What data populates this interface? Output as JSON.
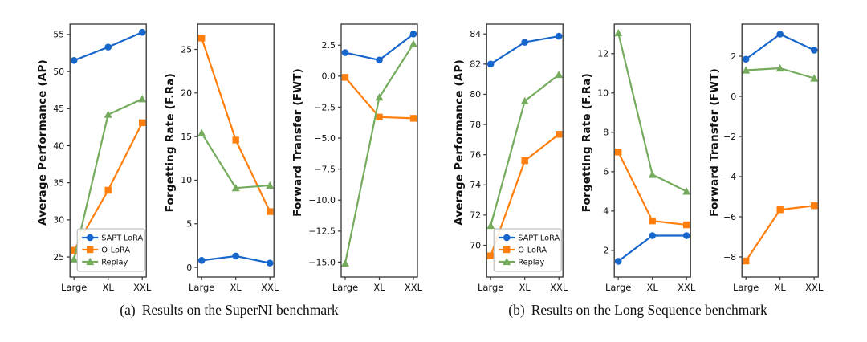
{
  "figures": [
    {
      "caption_tag": "(a)",
      "caption_text": "Results on the SuperNI benchmark"
    },
    {
      "caption_tag": "(b)",
      "caption_text": "Results on the Long Sequence benchmark"
    }
  ],
  "palette": {
    "sapt_blue": "#1766cb",
    "olora_orange": "#ff7f0e",
    "replay_green": "#74ab5d",
    "axis": "#333333",
    "legend_border": "#b3b3b3",
    "background": "#ffffff"
  },
  "x_axis": {
    "categories": [
      "Large",
      "XL",
      "XXL"
    ]
  },
  "legend_entries": [
    "SAPT-LoRA",
    "O-LoRA",
    "Replay"
  ],
  "chart_data": [
    {
      "type": "line",
      "figure": "SuperNI",
      "title": "",
      "xlabel": "",
      "ylabel": "Average Performance (AP)",
      "categories": [
        "Large",
        "XL",
        "XXL"
      ],
      "series": [
        {
          "name": "SAPT-LoRA",
          "color": "#1766cb",
          "marker": "circle",
          "values": [
            51.5,
            53.3,
            55.3
          ]
        },
        {
          "name": "O-LoRA",
          "color": "#ff7f0e",
          "marker": "square",
          "values": [
            25.9,
            34.0,
            43.1
          ]
        },
        {
          "name": "Replay",
          "color": "#74ab5d",
          "marker": "triangle-up",
          "values": [
            24.7,
            44.2,
            46.3
          ]
        }
      ],
      "ylim": [
        22.3,
        56.4
      ],
      "ytick_values": [
        25,
        30,
        35,
        40,
        45,
        50,
        55
      ],
      "ytick_labels": [
        "25",
        "30",
        "35",
        "40",
        "45",
        "50",
        "55"
      ],
      "grid": false,
      "legend": true,
      "legend_position": "lower-left-inside"
    },
    {
      "type": "line",
      "figure": "SuperNI",
      "title": "",
      "xlabel": "",
      "ylabel": "Forgetting Rate (F.Ra)",
      "categories": [
        "Large",
        "XL",
        "XXL"
      ],
      "series": [
        {
          "name": "SAPT-LoRA",
          "color": "#1766cb",
          "marker": "circle",
          "values": [
            0.8,
            1.3,
            0.5
          ]
        },
        {
          "name": "O-LoRA",
          "color": "#ff7f0e",
          "marker": "square",
          "values": [
            26.3,
            14.6,
            6.4
          ]
        },
        {
          "name": "Replay",
          "color": "#74ab5d",
          "marker": "triangle-up",
          "values": [
            15.4,
            9.1,
            9.4
          ]
        }
      ],
      "ylim": [
        -1.1,
        27.9
      ],
      "ytick_values": [
        0,
        5,
        10,
        15,
        20,
        25
      ],
      "ytick_labels": [
        "0",
        "5",
        "10",
        "15",
        "20",
        "25"
      ],
      "grid": false,
      "legend": false,
      "legend_position": ""
    },
    {
      "type": "line",
      "figure": "SuperNI",
      "title": "",
      "xlabel": "",
      "ylabel": "Forward Transfer (FWT)",
      "categories": [
        "Large",
        "XL",
        "XXL"
      ],
      "series": [
        {
          "name": "SAPT-LoRA",
          "color": "#1766cb",
          "marker": "circle",
          "values": [
            1.9,
            1.3,
            3.4
          ]
        },
        {
          "name": "O-LoRA",
          "color": "#ff7f0e",
          "marker": "square",
          "values": [
            -0.1,
            -3.3,
            -3.4
          ]
        },
        {
          "name": "Replay",
          "color": "#74ab5d",
          "marker": "triangle-up",
          "values": [
            -15.1,
            -1.7,
            2.6
          ]
        }
      ],
      "ylim": [
        -16.2,
        4.2
      ],
      "ytick_values": [
        2.5,
        0.0,
        -2.5,
        -5.0,
        -7.5,
        -10.0,
        -12.5,
        -15.0
      ],
      "ytick_labels": [
        "2.5",
        "0.0",
        "−2.5",
        "−5.0",
        "−7.5",
        "−10.0",
        "−12.5",
        "−15.0"
      ],
      "grid": false,
      "legend": false,
      "legend_position": ""
    },
    {
      "type": "line",
      "figure": "Long Sequence",
      "title": "",
      "xlabel": "",
      "ylabel": "Average Performance (AP)",
      "categories": [
        "Large",
        "XL",
        "XXL"
      ],
      "series": [
        {
          "name": "SAPT-LoRA",
          "color": "#1766cb",
          "marker": "circle",
          "values": [
            82.0,
            83.45,
            83.85
          ]
        },
        {
          "name": "O-LoRA",
          "color": "#ff7f0e",
          "marker": "square",
          "values": [
            69.3,
            75.6,
            77.35
          ]
        },
        {
          "name": "Replay",
          "color": "#74ab5d",
          "marker": "triangle-up",
          "values": [
            71.3,
            79.55,
            81.3
          ]
        }
      ],
      "ylim": [
        67.9,
        84.65
      ],
      "ytick_values": [
        70,
        72,
        74,
        76,
        78,
        80,
        82,
        84
      ],
      "ytick_labels": [
        "70",
        "72",
        "74",
        "76",
        "78",
        "80",
        "82",
        "84"
      ],
      "grid": false,
      "legend": true,
      "legend_position": "lower-left-inside"
    },
    {
      "type": "line",
      "figure": "Long Sequence",
      "title": "",
      "xlabel": "",
      "ylabel": "Forgetting Rate (F.Ra)",
      "categories": [
        "Large",
        "XL",
        "XXL"
      ],
      "series": [
        {
          "name": "SAPT-LoRA",
          "color": "#1766cb",
          "marker": "circle",
          "values": [
            1.45,
            2.75,
            2.75
          ]
        },
        {
          "name": "O-LoRA",
          "color": "#ff7f0e",
          "marker": "square",
          "values": [
            7.0,
            3.5,
            3.3
          ]
        },
        {
          "name": "Replay",
          "color": "#74ab5d",
          "marker": "triangle-up",
          "values": [
            13.05,
            5.85,
            5.0
          ]
        }
      ],
      "ylim": [
        0.65,
        13.5
      ],
      "ytick_values": [
        2,
        4,
        6,
        8,
        10,
        12
      ],
      "ytick_labels": [
        "2",
        "4",
        "6",
        "8",
        "10",
        "12"
      ],
      "grid": false,
      "legend": false,
      "legend_position": ""
    },
    {
      "type": "line",
      "figure": "Long Sequence",
      "title": "",
      "xlabel": "",
      "ylabel": "Forward Transfer (FWT)",
      "categories": [
        "Large",
        "XL",
        "XXL"
      ],
      "series": [
        {
          "name": "SAPT-LoRA",
          "color": "#1766cb",
          "marker": "circle",
          "values": [
            1.85,
            3.1,
            2.3
          ]
        },
        {
          "name": "O-LoRA",
          "color": "#ff7f0e",
          "marker": "square",
          "values": [
            -8.2,
            -5.65,
            -5.45
          ]
        },
        {
          "name": "Replay",
          "color": "#74ab5d",
          "marker": "triangle-up",
          "values": [
            1.3,
            1.4,
            0.9
          ]
        }
      ],
      "ylim": [
        -9.0,
        3.6
      ],
      "ytick_values": [
        2,
        0,
        -2,
        -4,
        -6,
        -8
      ],
      "ytick_labels": [
        "2",
        "0",
        "−2",
        "−4",
        "−6",
        "−8"
      ],
      "grid": false,
      "legend": false,
      "legend_position": ""
    }
  ]
}
